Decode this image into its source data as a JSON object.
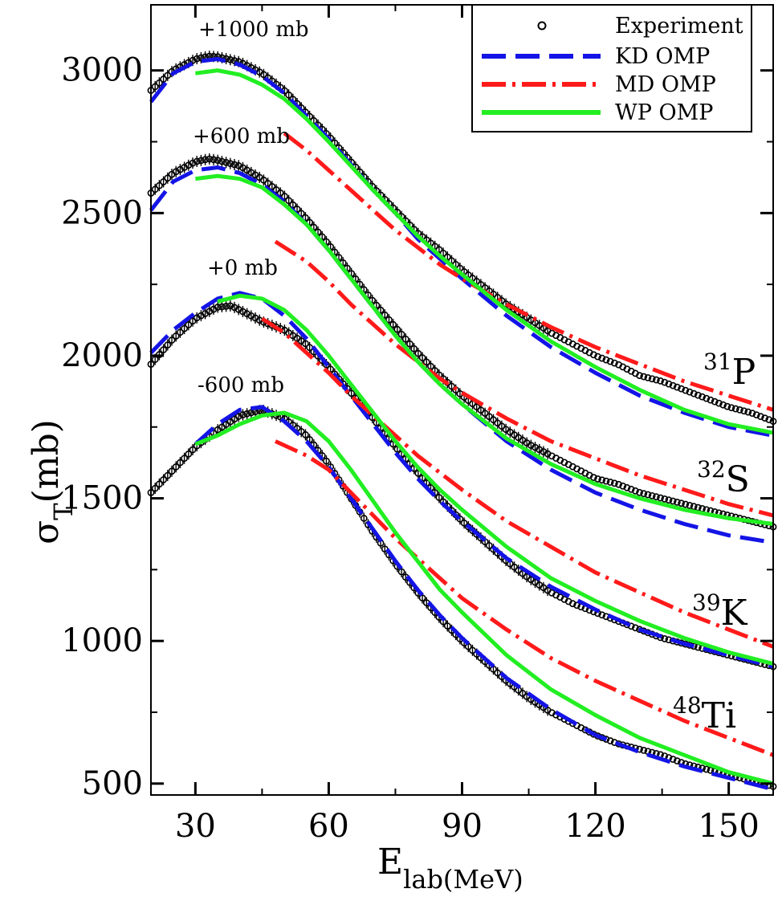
{
  "chart_data": {
    "type": "line",
    "title": "",
    "xlabel": {
      "main": "E",
      "sub": "lab(MeV)"
    },
    "ylabel": {
      "main": "σ",
      "sub": "T",
      "unit": "(mb)"
    },
    "xlim": [
      20,
      160
    ],
    "ylim": [
      460,
      3230
    ],
    "x_ticks": [
      "30",
      "60",
      "90",
      "120",
      "150"
    ],
    "y_ticks": [
      "500",
      "1000",
      "1500",
      "2000",
      "2500",
      "3000"
    ],
    "legend": {
      "placement": "top-right",
      "entries": [
        {
          "label": "Experiment",
          "style": "markers"
        },
        {
          "label": "KD OMP",
          "style": "dashed",
          "color": "#1414e6"
        },
        {
          "label": "MD OMP",
          "style": "dash-dot",
          "color": "#ff1a1a"
        },
        {
          "label": "WP OMP",
          "style": "solid",
          "color": "#22ee22"
        }
      ]
    },
    "datasets": [
      {
        "nucleus": {
          "mass": "31",
          "symbol": "P"
        },
        "offset_label": "+1000 mb",
        "experiment": {
          "x": [
            20,
            25,
            30,
            33,
            35,
            40,
            45,
            50,
            55,
            60,
            65,
            70,
            75,
            80,
            85,
            90,
            95,
            100,
            105,
            110,
            115,
            120,
            125,
            130,
            135,
            140,
            145,
            150,
            155,
            160
          ],
          "y": [
            2930,
            3000,
            3040,
            3050,
            3048,
            3030,
            2990,
            2930,
            2850,
            2770,
            2680,
            2590,
            2510,
            2430,
            2370,
            2300,
            2240,
            2180,
            2130,
            2080,
            2040,
            2000,
            1970,
            1930,
            1910,
            1880,
            1850,
            1820,
            1800,
            1770
          ]
        },
        "kd": {
          "x": [
            20,
            25,
            30,
            35,
            40,
            45,
            50,
            55,
            60,
            65,
            70,
            75,
            80,
            85,
            90,
            100,
            110,
            120,
            130,
            140,
            150,
            160
          ],
          "y": [
            2890,
            2990,
            3030,
            3040,
            3020,
            2980,
            2920,
            2840,
            2760,
            2670,
            2580,
            2500,
            2410,
            2340,
            2270,
            2140,
            2030,
            1940,
            1860,
            1800,
            1750,
            1720
          ]
        },
        "md": {
          "x": [
            50,
            55,
            60,
            65,
            70,
            75,
            80,
            85,
            90,
            100,
            110,
            120,
            130,
            140,
            150,
            160
          ],
          "y": [
            2780,
            2720,
            2650,
            2580,
            2510,
            2440,
            2380,
            2320,
            2270,
            2180,
            2100,
            2030,
            1970,
            1910,
            1860,
            1810
          ]
        },
        "wp": {
          "x": [
            30,
            35,
            40,
            45,
            50,
            55,
            60,
            65,
            70,
            75,
            80,
            85,
            90,
            100,
            110,
            120,
            130,
            140,
            150,
            160
          ],
          "y": [
            2990,
            3000,
            2985,
            2950,
            2900,
            2830,
            2750,
            2665,
            2580,
            2500,
            2420,
            2350,
            2285,
            2160,
            2050,
            1960,
            1880,
            1810,
            1760,
            1730
          ]
        }
      },
      {
        "nucleus": {
          "mass": "32",
          "symbol": "S"
        },
        "offset_label": "+600 mb",
        "experiment": {
          "x": [
            20,
            25,
            30,
            33,
            35,
            40,
            45,
            50,
            55,
            60,
            65,
            70,
            75,
            80,
            85,
            90,
            95,
            100,
            105,
            110,
            115,
            120,
            125,
            130,
            135,
            140,
            145,
            150,
            155,
            160
          ],
          "y": [
            2570,
            2640,
            2680,
            2690,
            2685,
            2665,
            2620,
            2560,
            2480,
            2390,
            2290,
            2190,
            2100,
            2010,
            1930,
            1860,
            1800,
            1740,
            1690,
            1650,
            1610,
            1570,
            1550,
            1520,
            1500,
            1480,
            1460,
            1440,
            1420,
            1400
          ]
        },
        "kd": {
          "x": [
            20,
            25,
            30,
            35,
            40,
            45,
            50,
            55,
            60,
            65,
            70,
            75,
            80,
            85,
            90,
            100,
            110,
            120,
            130,
            140,
            150,
            160
          ],
          "y": [
            2510,
            2610,
            2650,
            2660,
            2640,
            2600,
            2540,
            2460,
            2370,
            2270,
            2170,
            2070,
            1980,
            1900,
            1830,
            1700,
            1600,
            1520,
            1460,
            1410,
            1370,
            1345
          ]
        },
        "md": {
          "x": [
            48,
            55,
            60,
            65,
            70,
            75,
            80,
            85,
            90,
            100,
            110,
            120,
            130,
            140,
            150,
            160
          ],
          "y": [
            2400,
            2330,
            2260,
            2180,
            2110,
            2040,
            1980,
            1920,
            1870,
            1780,
            1700,
            1640,
            1580,
            1530,
            1480,
            1440
          ]
        },
        "wp": {
          "x": [
            30,
            35,
            40,
            45,
            50,
            55,
            60,
            65,
            70,
            75,
            80,
            85,
            90,
            100,
            110,
            120,
            130,
            140,
            150,
            160
          ],
          "y": [
            2620,
            2630,
            2620,
            2590,
            2530,
            2460,
            2370,
            2270,
            2170,
            2070,
            1980,
            1900,
            1830,
            1710,
            1620,
            1550,
            1500,
            1460,
            1430,
            1410
          ]
        }
      },
      {
        "nucleus": {
          "mass": "39",
          "symbol": "K"
        },
        "offset_label": "+0 mb",
        "experiment": {
          "x": [
            20,
            25,
            30,
            35,
            38,
            40,
            45,
            50,
            55,
            60,
            65,
            70,
            75,
            80,
            85,
            90,
            95,
            100,
            105,
            110,
            115,
            120,
            125,
            130,
            135,
            140,
            145,
            150,
            155,
            160
          ],
          "y": [
            1970,
            2060,
            2130,
            2170,
            2175,
            2160,
            2120,
            2090,
            2040,
            1960,
            1870,
            1780,
            1680,
            1590,
            1500,
            1420,
            1350,
            1280,
            1220,
            1170,
            1130,
            1100,
            1070,
            1040,
            1010,
            990,
            970,
            950,
            930,
            910
          ]
        },
        "kd": {
          "x": [
            20,
            25,
            30,
            35,
            40,
            45,
            50,
            55,
            60,
            65,
            70,
            75,
            80,
            85,
            90,
            100,
            110,
            120,
            130,
            140,
            150,
            160
          ],
          "y": [
            2010,
            2090,
            2150,
            2200,
            2220,
            2200,
            2140,
            2060,
            1960,
            1860,
            1760,
            1660,
            1570,
            1490,
            1420,
            1290,
            1190,
            1110,
            1040,
            990,
            950,
            910
          ]
        },
        "md": {
          "x": [
            45,
            50,
            55,
            60,
            65,
            70,
            75,
            80,
            85,
            90,
            100,
            110,
            120,
            130,
            140,
            150,
            160
          ],
          "y": [
            2130,
            2080,
            2010,
            1940,
            1860,
            1790,
            1720,
            1650,
            1590,
            1530,
            1420,
            1330,
            1240,
            1170,
            1100,
            1040,
            980
          ]
        },
        "wp": {
          "x": [
            35,
            40,
            45,
            50,
            55,
            60,
            65,
            70,
            75,
            80,
            85,
            90,
            100,
            110,
            120,
            130,
            140,
            150,
            160
          ],
          "y": [
            2190,
            2210,
            2200,
            2160,
            2090,
            2000,
            1900,
            1800,
            1700,
            1610,
            1530,
            1460,
            1330,
            1220,
            1140,
            1070,
            1010,
            960,
            920
          ]
        }
      },
      {
        "nucleus": {
          "mass": "48",
          "symbol": "Ti"
        },
        "offset_label": "-600 mb",
        "experiment": {
          "x": [
            20,
            25,
            30,
            35,
            40,
            45,
            50,
            55,
            60,
            65,
            70,
            75,
            80,
            85,
            90,
            95,
            100,
            105,
            110,
            115,
            120,
            125,
            130,
            135,
            140,
            145,
            150,
            155,
            160
          ],
          "y": [
            1520,
            1600,
            1680,
            1740,
            1790,
            1810,
            1780,
            1720,
            1620,
            1500,
            1380,
            1270,
            1170,
            1080,
            1000,
            930,
            860,
            800,
            750,
            710,
            670,
            640,
            620,
            600,
            570,
            550,
            530,
            510,
            490
          ]
        },
        "kd": {
          "x": [
            30,
            35,
            40,
            45,
            50,
            55,
            60,
            65,
            70,
            75,
            80,
            85,
            90,
            100,
            110,
            120,
            130,
            140,
            150,
            160
          ],
          "y": [
            1690,
            1760,
            1810,
            1820,
            1770,
            1700,
            1610,
            1500,
            1390,
            1280,
            1180,
            1090,
            1010,
            870,
            760,
            670,
            610,
            560,
            520,
            480
          ]
        },
        "md": {
          "x": [
            48,
            55,
            60,
            65,
            70,
            75,
            80,
            85,
            90,
            100,
            110,
            120,
            130,
            140,
            150,
            160
          ],
          "y": [
            1700,
            1650,
            1600,
            1520,
            1440,
            1360,
            1290,
            1220,
            1150,
            1040,
            940,
            860,
            790,
            720,
            660,
            600
          ]
        },
        "wp": {
          "x": [
            30,
            35,
            40,
            45,
            50,
            55,
            60,
            65,
            70,
            75,
            80,
            85,
            90,
            100,
            110,
            120,
            130,
            140,
            150,
            160
          ],
          "y": [
            1690,
            1720,
            1760,
            1790,
            1800,
            1770,
            1700,
            1600,
            1490,
            1380,
            1280,
            1180,
            1100,
            950,
            830,
            740,
            660,
            600,
            540,
            500
          ]
        }
      }
    ]
  }
}
